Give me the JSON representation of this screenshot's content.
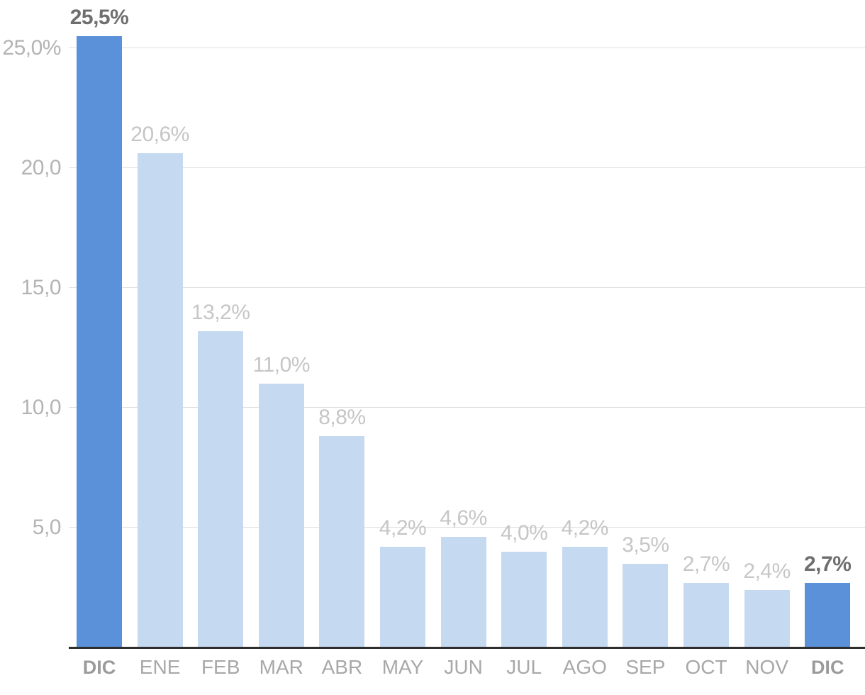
{
  "chart_data": {
    "type": "bar",
    "title": "",
    "xlabel": "",
    "ylabel": "",
    "categories": [
      "DIC",
      "ENE",
      "FEB",
      "MAR",
      "ABR",
      "MAY",
      "JUN",
      "JUL",
      "AGO",
      "SEP",
      "OCT",
      "NOV",
      "DIC"
    ],
    "values": [
      25.5,
      20.6,
      13.2,
      11.0,
      8.8,
      4.2,
      4.6,
      4.0,
      4.2,
      3.5,
      2.7,
      2.4,
      2.7
    ],
    "value_labels": [
      "25,5%",
      "20,6%",
      "13,2%",
      "11,0%",
      "8,8%",
      "4,2%",
      "4,6%",
      "4,0%",
      "4,2%",
      "3,5%",
      "2,7%",
      "2,4%",
      "2,7%"
    ],
    "highlighted": [
      true,
      false,
      false,
      false,
      false,
      false,
      false,
      false,
      false,
      false,
      false,
      false,
      true
    ],
    "ylim": [
      0,
      27
    ],
    "yticks": [
      {
        "value": 5,
        "label": "5,0"
      },
      {
        "value": 10,
        "label": "10,0"
      },
      {
        "value": 15,
        "label": "15,0"
      },
      {
        "value": 20,
        "label": "20,0"
      },
      {
        "value": 25,
        "label": "25,0%"
      }
    ],
    "grid": true,
    "legend": false,
    "colors": {
      "bar_highlight": "#5b91d9",
      "bar_normal": "#c5daf1",
      "gridline": "#e0e0e0",
      "baseline": "#2e2e2e",
      "axis_tick_label": "#b4b4b4",
      "value_label": "#c6c6c6",
      "value_label_highlight": "#6f6f6f",
      "month_label": "#a8a8a8",
      "month_label_highlight": "#9b9b9b"
    }
  }
}
